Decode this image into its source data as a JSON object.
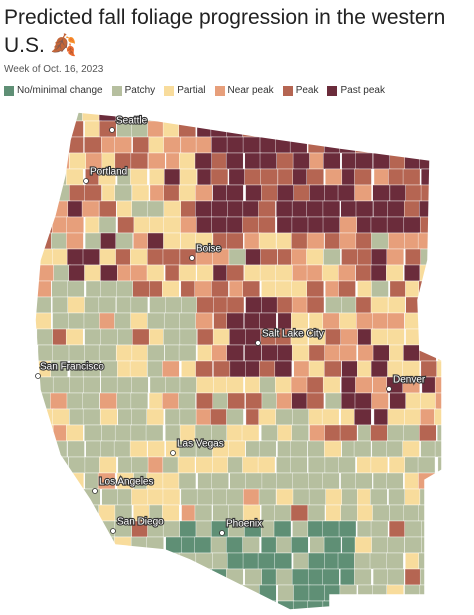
{
  "header": {
    "title": "Predicted fall foliage progression in the western U.S. 🍂",
    "subtitle": "Week of Oct. 16, 2023"
  },
  "legend": {
    "items": [
      {
        "label": "No/minimal change",
        "color": "#5f8f75"
      },
      {
        "label": "Patchy",
        "color": "#b6bf9f"
      },
      {
        "label": "Partial",
        "color": "#f8dc9c"
      },
      {
        "label": "Near peak",
        "color": "#e79f7b"
      },
      {
        "label": "Peak",
        "color": "#b56552"
      },
      {
        "label": "Past peak",
        "color": "#6b2c3b"
      }
    ]
  },
  "map": {
    "cities": [
      {
        "label": "Seattle"
      },
      {
        "label": "Portland"
      },
      {
        "label": "Boise"
      },
      {
        "label": "Salt Lake City"
      },
      {
        "label": "San Francisco"
      },
      {
        "label": "Denver"
      },
      {
        "label": "Las Vegas"
      },
      {
        "label": "Los Angeles"
      },
      {
        "label": "San Diego"
      },
      {
        "label": "Phoenix"
      }
    ]
  }
}
